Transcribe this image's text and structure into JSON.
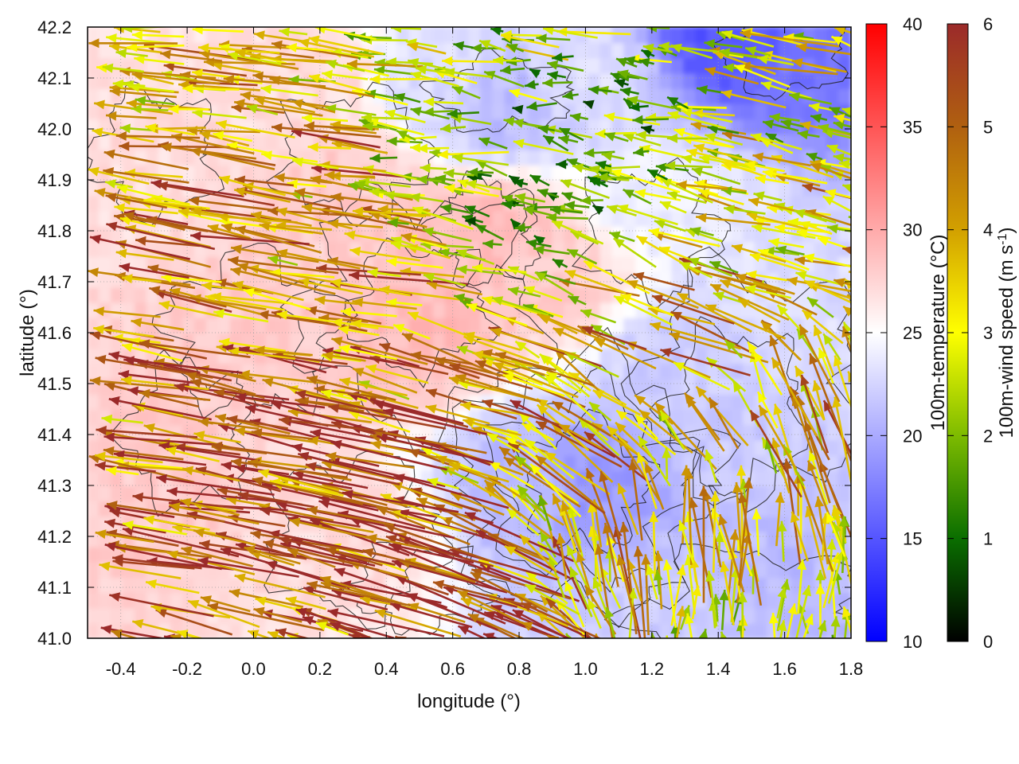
{
  "chart_data": {
    "type": "heatmap",
    "subtype": "vector-field-with-contours",
    "xlabel": "longitude (°)",
    "ylabel": "latitude (°)",
    "xlim": [
      -0.5,
      1.8
    ],
    "ylim": [
      41.0,
      42.2
    ],
    "xticks": [
      "-0.4",
      "-0.2",
      "0.0",
      "0.2",
      "0.4",
      "0.6",
      "0.8",
      "1.0",
      "1.2",
      "1.4",
      "1.6",
      "1.8"
    ],
    "xtick_values": [
      -0.4,
      -0.2,
      0.0,
      0.2,
      0.4,
      0.6,
      0.8,
      1.0,
      1.2,
      1.4,
      1.6,
      1.8
    ],
    "yticks": [
      "41.0",
      "41.1",
      "41.2",
      "41.3",
      "41.4",
      "41.5",
      "41.6",
      "41.7",
      "41.8",
      "41.9",
      "42.0",
      "42.1",
      "42.2"
    ],
    "ytick_values": [
      41.0,
      41.1,
      41.2,
      41.3,
      41.4,
      41.5,
      41.6,
      41.7,
      41.8,
      41.9,
      42.0,
      42.1,
      42.2
    ],
    "grid": true,
    "temperature_colorbar": {
      "label": "100m-temperature (°C)",
      "range": [
        10,
        40
      ],
      "ticks": [
        "10",
        "15",
        "20",
        "25",
        "30",
        "35",
        "40"
      ],
      "tick_values": [
        10,
        15,
        20,
        25,
        30,
        35,
        40
      ],
      "colors": [
        "#0000ff",
        "#ffffff",
        "#ff0000"
      ]
    },
    "wind_colorbar": {
      "label_main": "100m-wind speed (m s",
      "label_sup": "-1",
      "label_end": ")",
      "range": [
        0,
        6
      ],
      "ticks": [
        "0",
        "1",
        "2",
        "3",
        "4",
        "5",
        "6"
      ],
      "tick_values": [
        0,
        1,
        2,
        3,
        4,
        5,
        6
      ],
      "colors": [
        "#000000",
        "#0a6e00",
        "#7dbb00",
        "#ffff00",
        "#d2a000",
        "#b06010",
        "#9b2a2a"
      ]
    },
    "temperature_regions": [
      {
        "lon": -0.3,
        "lat": 41.3,
        "temp": 28
      },
      {
        "lon": 0.0,
        "lat": 41.6,
        "temp": 28
      },
      {
        "lon": 0.3,
        "lat": 41.9,
        "temp": 28
      },
      {
        "lon": 0.5,
        "lat": 41.6,
        "temp": 29
      },
      {
        "lon": 0.7,
        "lat": 41.8,
        "temp": 29
      },
      {
        "lon": 0.9,
        "lat": 41.7,
        "temp": 28
      },
      {
        "lon": 0.2,
        "lat": 42.1,
        "temp": 27
      },
      {
        "lon": -0.4,
        "lat": 41.9,
        "temp": 27
      },
      {
        "lon": 0.3,
        "lat": 41.2,
        "temp": 27
      },
      {
        "lon": 1.0,
        "lat": 41.3,
        "temp": 19
      },
      {
        "lon": 0.85,
        "lat": 41.3,
        "temp": 21
      },
      {
        "lon": 1.3,
        "lat": 41.55,
        "temp": 22
      },
      {
        "lon": 1.5,
        "lat": 41.4,
        "temp": 22
      },
      {
        "lon": 1.6,
        "lat": 41.1,
        "temp": 21
      },
      {
        "lon": 1.2,
        "lat": 41.05,
        "temp": 22
      },
      {
        "lon": 1.45,
        "lat": 42.18,
        "temp": 15
      },
      {
        "lon": 1.7,
        "lat": 42.15,
        "temp": 17
      },
      {
        "lon": 0.75,
        "lat": 42.05,
        "temp": 21
      },
      {
        "lon": 1.0,
        "lat": 42.1,
        "temp": 23
      },
      {
        "lon": 0.55,
        "lat": 42.1,
        "temp": 23
      },
      {
        "lon": 1.6,
        "lat": 41.65,
        "temp": 23
      },
      {
        "lon": 1.25,
        "lat": 41.85,
        "temp": 24
      }
    ],
    "wind_regions": [
      {
        "lon": -0.4,
        "lat": 41.3,
        "u": -5.5,
        "v": 0.8
      },
      {
        "lon": 0.0,
        "lat": 41.35,
        "u": -5.8,
        "v": 1.2
      },
      {
        "lon": 0.3,
        "lat": 41.15,
        "u": -5.8,
        "v": 1.6
      },
      {
        "lon": 0.5,
        "lat": 41.1,
        "u": -5.5,
        "v": 2.0
      },
      {
        "lon": -0.3,
        "lat": 41.8,
        "u": -5.0,
        "v": 0.9
      },
      {
        "lon": 0.2,
        "lat": 41.7,
        "u": -4.5,
        "v": 0.8
      },
      {
        "lon": 0.6,
        "lat": 41.5,
        "u": -4.2,
        "v": 1.2
      },
      {
        "lon": 0.9,
        "lat": 41.45,
        "u": -3.5,
        "v": 2.5
      },
      {
        "lon": 1.1,
        "lat": 41.25,
        "u": -0.8,
        "v": 4.2
      },
      {
        "lon": 1.4,
        "lat": 41.3,
        "u": -0.4,
        "v": 3.8
      },
      {
        "lon": 1.6,
        "lat": 41.1,
        "u": 0.0,
        "v": 2.8
      },
      {
        "lon": 1.4,
        "lat": 41.05,
        "u": 0.0,
        "v": 2.5
      },
      {
        "lon": 1.6,
        "lat": 41.5,
        "u": -1.5,
        "v": 4.0
      },
      {
        "lon": 1.2,
        "lat": 41.65,
        "u": -4.0,
        "v": 1.5
      },
      {
        "lon": 1.5,
        "lat": 41.8,
        "u": -3.5,
        "v": 0.8
      },
      {
        "lon": 0.8,
        "lat": 41.85,
        "u": -1.5,
        "v": 0.4
      },
      {
        "lon": 0.5,
        "lat": 42.0,
        "u": -2.5,
        "v": 0.3
      },
      {
        "lon": 1.0,
        "lat": 42.05,
        "u": -1.8,
        "v": 0.2
      },
      {
        "lon": 1.6,
        "lat": 42.1,
        "u": -3.0,
        "v": 0.8
      },
      {
        "lon": 0.0,
        "lat": 42.0,
        "u": -4.5,
        "v": 0.6
      },
      {
        "lon": -0.4,
        "lat": 42.1,
        "u": -4.0,
        "v": 0.3
      }
    ]
  }
}
